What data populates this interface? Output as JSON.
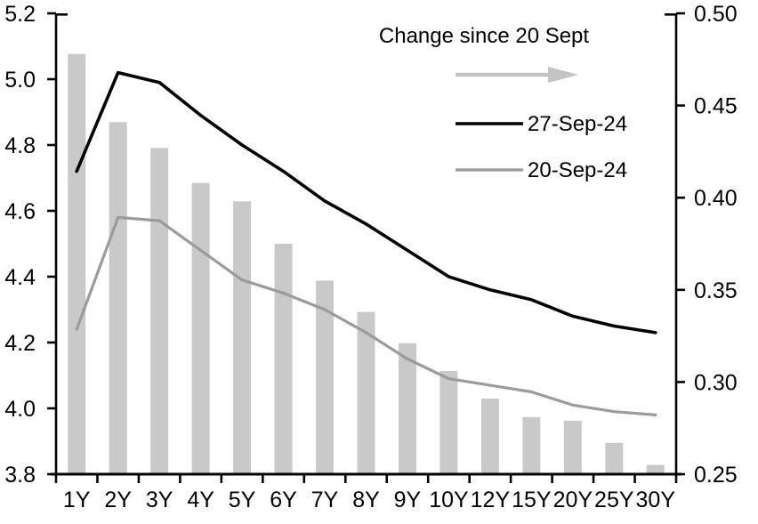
{
  "chart_data": {
    "type": "combo",
    "title": "",
    "categories": [
      "1Y",
      "2Y",
      "3Y",
      "4Y",
      "5Y",
      "6Y",
      "7Y",
      "8Y",
      "9Y",
      "10Y",
      "12Y",
      "15Y",
      "20Y",
      "25Y",
      "30Y"
    ],
    "series": [
      {
        "name": "Change since 20 Sept",
        "type": "bar",
        "axis": "right",
        "color": "#c9c9c9",
        "values": [
          0.478,
          0.441,
          0.427,
          0.408,
          0.398,
          0.375,
          0.355,
          0.338,
          0.321,
          0.306,
          0.291,
          0.281,
          0.279,
          0.267,
          0.255
        ]
      },
      {
        "name": "27-Sep-24",
        "type": "line",
        "axis": "left",
        "color": "#000000",
        "values": [
          4.72,
          5.02,
          4.99,
          4.89,
          4.8,
          4.72,
          4.63,
          4.56,
          4.48,
          4.4,
          4.36,
          4.33,
          4.28,
          4.25,
          4.23
        ]
      },
      {
        "name": "20-Sep-24",
        "type": "line",
        "axis": "left",
        "color": "#9b9b9b",
        "values": [
          4.24,
          4.58,
          4.57,
          4.48,
          4.39,
          4.35,
          4.3,
          4.23,
          4.15,
          4.09,
          4.07,
          4.05,
          4.01,
          3.99,
          3.98
        ]
      }
    ],
    "left_axis": {
      "min": 3.8,
      "max": 5.2,
      "tick_labels": [
        "5.2",
        "5.0",
        "4.8",
        "4.6",
        "4.4",
        "4.2",
        "4.0",
        "3.8"
      ]
    },
    "right_axis": {
      "min": 0.25,
      "max": 0.5,
      "tick_labels": [
        "0.50",
        "0.45",
        "0.40",
        "0.35",
        "0.30",
        "0.25"
      ]
    },
    "legend": {
      "title": "Change since 20 Sept",
      "arrow_color": "#c4c4c4",
      "entries": [
        {
          "label": "27-Sep-24",
          "color": "#000000"
        },
        {
          "label": "20-Sep-24",
          "color": "#9b9b9b"
        }
      ]
    },
    "grid": false,
    "legend_position": "inside-top-right",
    "axis_color": "#000000"
  }
}
